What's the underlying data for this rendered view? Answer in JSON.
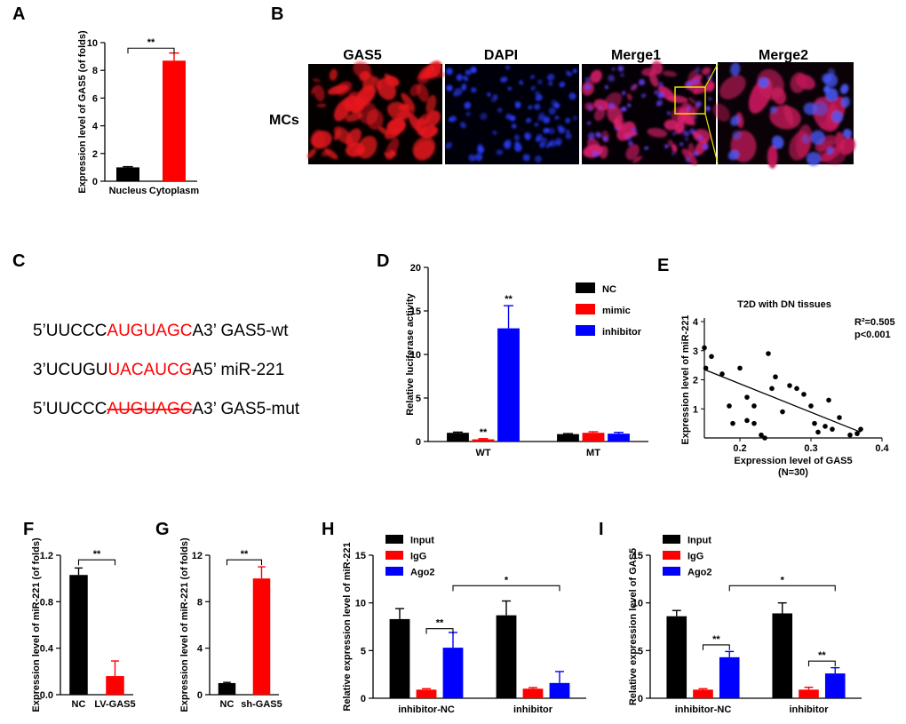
{
  "panels": {
    "A": "A",
    "B": "B",
    "C": "C",
    "D": "D",
    "E": "E",
    "F": "F",
    "G": "G",
    "H": "H",
    "I": "I"
  },
  "microscopy": {
    "row_label": "MCs",
    "columns": [
      "GAS5",
      "DAPI",
      "Merge1",
      "Merge2"
    ]
  },
  "sequences": [
    {
      "prefix": "5’UUCCC",
      "highlight": "AUGUAGC",
      "suffix": "A3’ GAS5-wt",
      "strike": false
    },
    {
      "prefix": "3’UCUGU",
      "highlight": "UACAUCG",
      "suffix": "A5’ miR-221",
      "strike": false
    },
    {
      "prefix": "5’UUCCC",
      "highlight": "AUGUAGC",
      "suffix": "A3’ GAS5-mut",
      "strike": true
    }
  ],
  "colors": {
    "black": "#000000",
    "red": "#ff0000",
    "blue": "#0000ff"
  },
  "chart_data": [
    {
      "id": "A",
      "type": "bar",
      "ylabel": "Expression level of GAS5 (of folds)",
      "categories": [
        "Nucleus",
        "Cytoplasm"
      ],
      "values": [
        1.0,
        8.7
      ],
      "errors": [
        0.05,
        0.55
      ],
      "bar_colors": [
        "#000000",
        "#ff0000"
      ],
      "ylim": [
        0,
        10
      ],
      "yticks": [
        0,
        2,
        4,
        6,
        8,
        10
      ],
      "annotations": [
        {
          "text": "**",
          "from": 0,
          "to": 1,
          "y": 9.6
        }
      ]
    },
    {
      "id": "D",
      "type": "bar",
      "ylabel": "Relative luciferase activity",
      "categories": [
        "WT",
        "MT"
      ],
      "series": [
        {
          "name": "NC",
          "values": [
            1.0,
            0.85
          ],
          "errors": [
            0.08,
            0.06
          ],
          "color": "#000000"
        },
        {
          "name": "mimic",
          "values": [
            0.25,
            1.0
          ],
          "errors": [
            0.08,
            0.12
          ],
          "color": "#ff0000"
        },
        {
          "name": "inhibitor",
          "values": [
            13.0,
            0.9
          ],
          "errors": [
            2.6,
            0.15
          ],
          "color": "#0000ff"
        }
      ],
      "ylim": [
        0,
        20
      ],
      "yticks": [
        0,
        5,
        10,
        15,
        20
      ],
      "star_labels": [
        {
          "group": 0,
          "series": 1,
          "text": "**"
        },
        {
          "group": 0,
          "series": 2,
          "text": "**"
        }
      ],
      "legend": "right"
    },
    {
      "id": "E",
      "type": "scatter",
      "title": "T2D with DN tissues",
      "xlabel": "Expression level of GAS5",
      "xnote": "(N=30)",
      "ylabel": "Expression level of miR-221",
      "xlim": [
        0.15,
        0.4
      ],
      "ylim": [
        0,
        4
      ],
      "xticks": [
        0.2,
        0.3,
        0.4
      ],
      "yticks": [
        1,
        2,
        3,
        4
      ],
      "r2_text": "R²=0.505",
      "p_text": "p<0.001",
      "points": [
        [
          0.15,
          3.1
        ],
        [
          0.152,
          2.4
        ],
        [
          0.16,
          2.8
        ],
        [
          0.175,
          2.2
        ],
        [
          0.185,
          1.1
        ],
        [
          0.19,
          0.5
        ],
        [
          0.2,
          2.4
        ],
        [
          0.21,
          1.4
        ],
        [
          0.21,
          0.6
        ],
        [
          0.22,
          1.1
        ],
        [
          0.22,
          0.5
        ],
        [
          0.23,
          0.1
        ],
        [
          0.235,
          0.0
        ],
        [
          0.24,
          2.9
        ],
        [
          0.245,
          1.7
        ],
        [
          0.25,
          2.1
        ],
        [
          0.26,
          0.9
        ],
        [
          0.27,
          1.8
        ],
        [
          0.28,
          1.7
        ],
        [
          0.29,
          1.5
        ],
        [
          0.3,
          1.1
        ],
        [
          0.305,
          0.5
        ],
        [
          0.31,
          0.2
        ],
        [
          0.32,
          0.4
        ],
        [
          0.325,
          1.3
        ],
        [
          0.33,
          0.3
        ],
        [
          0.34,
          0.7
        ],
        [
          0.355,
          0.1
        ],
        [
          0.365,
          0.15
        ],
        [
          0.37,
          0.3
        ]
      ],
      "fit": {
        "x": [
          0.15,
          0.37
        ],
        "y": [
          2.35,
          0.2
        ]
      }
    },
    {
      "id": "F",
      "type": "bar",
      "ylabel": "Expression level of miR-221 (of folds)",
      "categories": [
        "NC",
        "LV-GAS5"
      ],
      "values": [
        1.03,
        0.16
      ],
      "errors": [
        0.06,
        0.13
      ],
      "bar_colors": [
        "#000000",
        "#ff0000"
      ],
      "ylim": [
        0,
        1.2
      ],
      "yticks": [
        0.0,
        0.4,
        0.8,
        1.2
      ],
      "ytick_labels": [
        "0.0",
        "0.4",
        "0.8",
        "1.2"
      ],
      "annotations": [
        {
          "text": "**",
          "from": 0,
          "to": 1,
          "y": 1.16
        }
      ]
    },
    {
      "id": "G",
      "type": "bar",
      "ylabel": "Expression level of miR-221 (of folds)",
      "categories": [
        "NC",
        "sh-GAS5"
      ],
      "values": [
        1.0,
        10.0
      ],
      "errors": [
        0.06,
        1.0
      ],
      "bar_colors": [
        "#000000",
        "#ff0000"
      ],
      "ylim": [
        0,
        12
      ],
      "yticks": [
        0,
        4,
        8,
        12
      ],
      "annotations": [
        {
          "text": "**",
          "from": 0,
          "to": 1,
          "y": 11.6
        }
      ]
    },
    {
      "id": "H",
      "type": "bar",
      "ylabel": "Relative expression level of miR-221",
      "categories": [
        "inhibitor-NC",
        "inhibitor"
      ],
      "series": [
        {
          "name": "Input",
          "values": [
            8.3,
            8.7
          ],
          "errors": [
            1.1,
            1.5
          ],
          "color": "#000000"
        },
        {
          "name": "IgG",
          "values": [
            0.9,
            1.0
          ],
          "errors": [
            0.1,
            0.12
          ],
          "color": "#ff0000"
        },
        {
          "name": "Ago2",
          "values": [
            5.3,
            1.6
          ],
          "errors": [
            1.6,
            1.2
          ],
          "color": "#0000ff"
        }
      ],
      "ylim": [
        0,
        15
      ],
      "yticks": [
        0,
        5,
        10,
        15
      ],
      "legend": "top-left",
      "annotations": [
        {
          "text": "**",
          "from": [
            0,
            1
          ],
          "to": [
            0,
            2
          ],
          "y": 7.3
        },
        {
          "text": "*",
          "from": [
            0,
            2
          ],
          "to": [
            1,
            2
          ],
          "y": 11.8
        }
      ]
    },
    {
      "id": "I",
      "type": "bar",
      "ylabel": "Relative expression level of GAS5",
      "categories": [
        "inhibitor-NC",
        "inhibitor"
      ],
      "series": [
        {
          "name": "Input",
          "values": [
            8.6,
            8.9
          ],
          "errors": [
            0.6,
            1.1
          ],
          "color": "#000000"
        },
        {
          "name": "IgG",
          "values": [
            0.9,
            0.9
          ],
          "errors": [
            0.1,
            0.25
          ],
          "color": "#ff0000"
        },
        {
          "name": "Ago2",
          "values": [
            4.3,
            2.6
          ],
          "errors": [
            0.6,
            0.6
          ],
          "color": "#0000ff"
        }
      ],
      "ylim": [
        0,
        15
      ],
      "yticks": [
        0,
        5,
        10,
        15
      ],
      "legend": "top-left",
      "annotations": [
        {
          "text": "**",
          "from": [
            0,
            1
          ],
          "to": [
            0,
            2
          ],
          "y": 5.6
        },
        {
          "text": "*",
          "from": [
            0,
            2
          ],
          "to": [
            1,
            2
          ],
          "y": 11.8
        },
        {
          "text": "**",
          "from": [
            1,
            1
          ],
          "to": [
            1,
            2
          ],
          "y": 3.9
        }
      ]
    }
  ]
}
